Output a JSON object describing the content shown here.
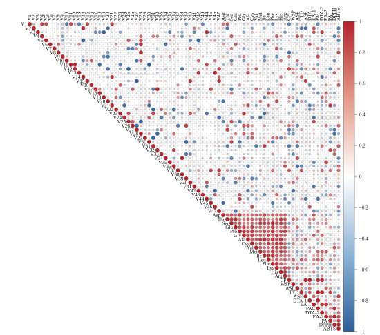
{
  "chart_data": {
    "type": "heatmap",
    "variant": "correlation-matrix-upper-triangle-circles",
    "title": "",
    "xlabel": "",
    "ylabel": "",
    "variables": [
      "V1",
      "V2",
      "V3",
      "V4",
      "V5",
      "V6",
      "V7",
      "V8",
      "V9",
      "V10",
      "V11",
      "V12",
      "V13",
      "V14",
      "V15",
      "V16",
      "V17",
      "V18",
      "V19",
      "V20",
      "V21",
      "V22",
      "V23",
      "V24",
      "V25",
      "V26",
      "V27",
      "V28",
      "V29",
      "V30",
      "V31",
      "V32",
      "V33",
      "V34",
      "V35",
      "V36",
      "V37",
      "V38",
      "V39",
      "V40",
      "V41",
      "V42",
      "V43",
      "V44",
      "V45",
      "V46",
      "V47",
      "Asp",
      "Thr",
      "Ser",
      "Glu",
      "Pro",
      "Gly",
      "Ala",
      "Cys",
      "Val",
      "Met",
      "Ile",
      "Leu",
      "Phe",
      "Lys",
      "His",
      "Arg",
      "CP",
      "WSP",
      "ASP",
      "TTD",
      "ASE",
      "DTA-1",
      "EA-1",
      "PAC",
      "DTA-2",
      "EA-2",
      "PA",
      "DPPH",
      "ABTS"
    ],
    "colorbar": {
      "range": [
        -1,
        1
      ],
      "ticks": [
        "1",
        "0.8",
        "0.6",
        "0.4",
        "0.2",
        "0",
        "−0.2",
        "−0.4",
        "−0.6",
        "−0.8",
        "−1"
      ],
      "low_color": "#2f5f99",
      "mid_color": "#ffffff",
      "high_color": "#b2242c"
    },
    "grid": true,
    "legend": "colorbar-right",
    "note_values": "Correlation coefficients (−1 to 1) shown by circle size and color; diagonal equals 1."
  }
}
